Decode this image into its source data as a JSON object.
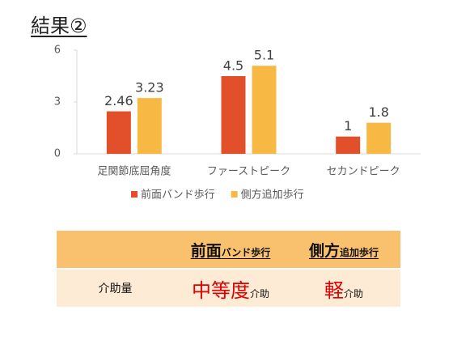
{
  "title": "結果②",
  "chart_data": {
    "type": "bar",
    "categories": [
      "足関節底屈角度",
      "ファーストピーク",
      "セカンドピーク"
    ],
    "series": [
      {
        "name": "前面バンド歩行",
        "color": "#e2502b",
        "values": [
          2.46,
          4.5,
          1
        ]
      },
      {
        "name": "側方追加歩行",
        "color": "#f8b944",
        "values": [
          3.23,
          5.1,
          1.8
        ]
      }
    ],
    "ylim": [
      0,
      6
    ],
    "yticks": [
      0,
      3,
      6
    ],
    "grid": false,
    "legend": "bottom"
  },
  "table": {
    "columns": [
      {
        "main": "前面",
        "sub": "バンド歩行"
      },
      {
        "main": "側方",
        "sub": "追加歩行"
      }
    ],
    "rows": [
      {
        "label": "介助量",
        "cells": [
          {
            "main": "中等度",
            "sub": "介助"
          },
          {
            "main": "軽",
            "sub": "介助"
          }
        ]
      }
    ]
  }
}
